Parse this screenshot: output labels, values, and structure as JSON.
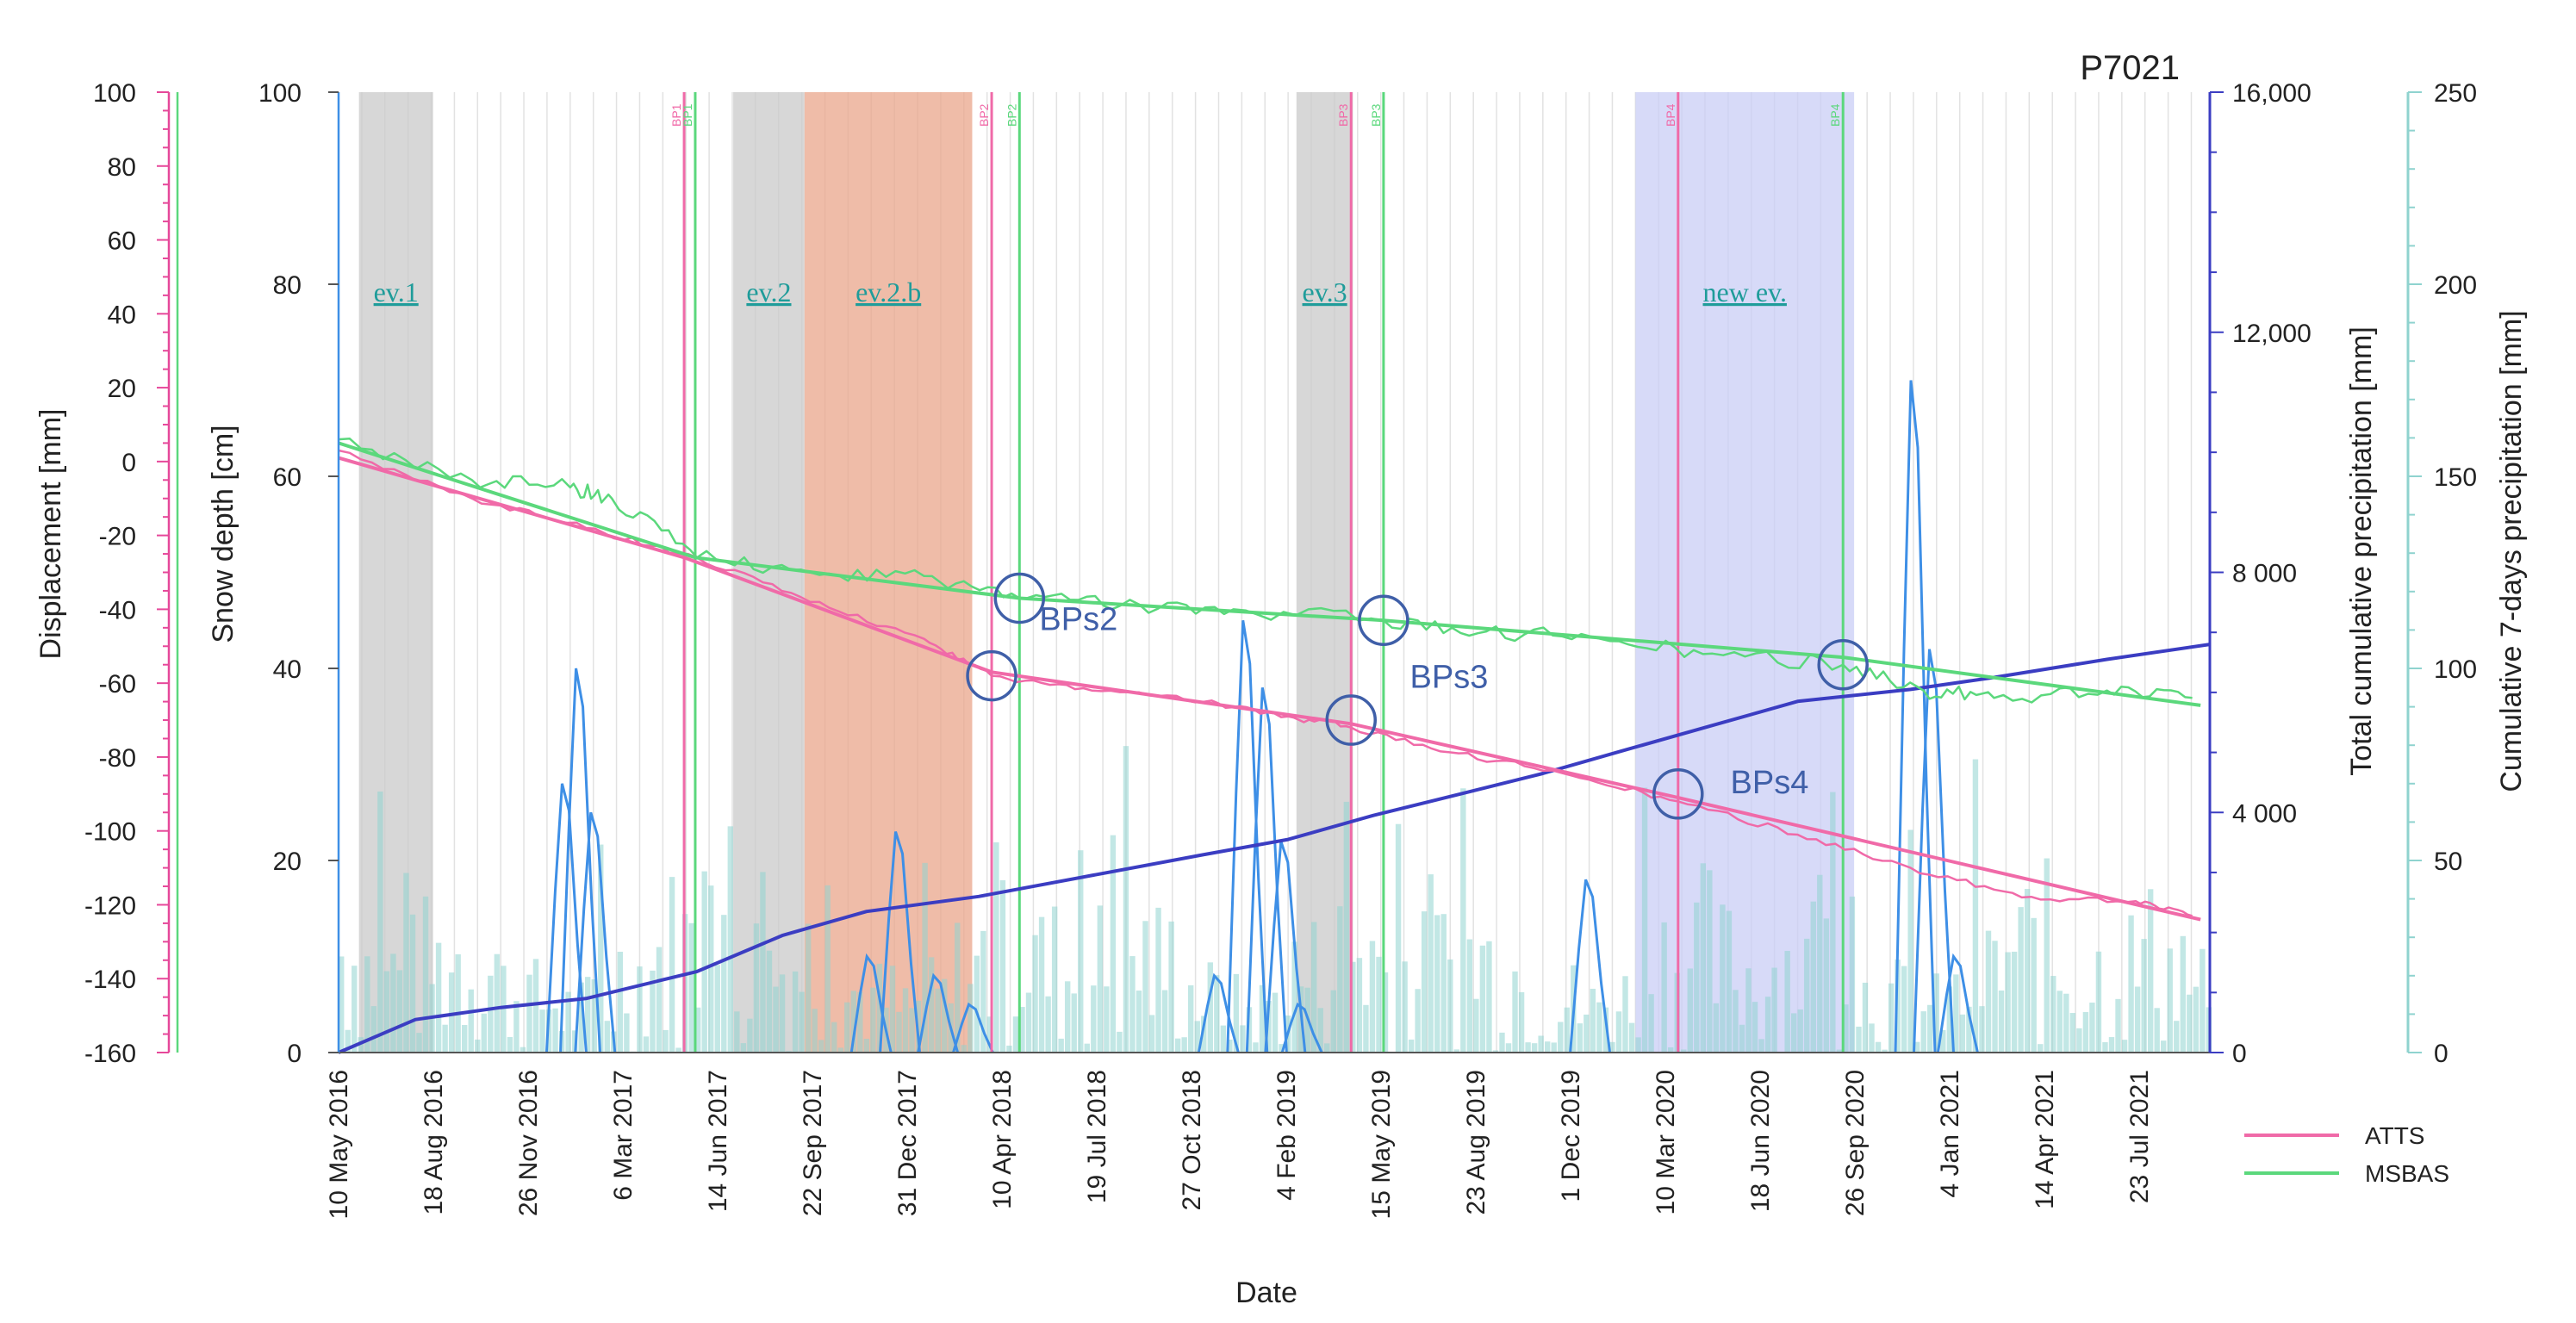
{
  "chart_data": {
    "type": "line",
    "title": "P7021",
    "xlabel": "Date",
    "x_ticks": [
      "10 May 2016",
      "18 Aug 2016",
      "26 Nov 2016",
      "6 Mar 2017",
      "14 Jun 2017",
      "22 Sep 2017",
      "31 Dec 2017",
      "10 Apr 2018",
      "19 Jul 2018",
      "27 Oct 2018",
      "4 Feb 2019",
      "15 May 2019",
      "23 Aug 2019",
      "1 Dec 2019",
      "10 Mar 2020",
      "18 Jun 2020",
      "26 Sep 2020",
      "4 Jan 2021",
      "14 Apr 2021",
      "23 Jul 2021"
    ],
    "x_range": [
      "2016-05-10",
      "2021-11-20"
    ],
    "axes": {
      "displacement": {
        "label": "Displacement [mm]",
        "ylim": [
          -160,
          100
        ],
        "ticks": [
          100,
          80,
          60,
          40,
          20,
          0,
          -20,
          -40,
          -60,
          -80,
          -100,
          -120,
          -140,
          -160
        ],
        "color": "#e6489a"
      },
      "snow": {
        "label": "Snow depth [cm]",
        "ylim": [
          0,
          100
        ],
        "ticks": [
          0,
          20,
          40,
          60,
          80,
          100
        ],
        "color": "#3e8fe6"
      },
      "total_precip": {
        "label": "Total cumulative precipitation [mm]",
        "ylim": [
          0,
          16000
        ],
        "ticks": [
          "0",
          "4 000",
          "8 000",
          "12,000",
          "16,000"
        ],
        "color": "#3b3dc2"
      },
      "cum7_precip": {
        "label": "Cumulative 7-days precipitation [mm]",
        "ylim": [
          0,
          250
        ],
        "ticks": [
          0,
          50,
          100,
          150,
          200,
          250
        ],
        "color": "#8fd3cf"
      }
    },
    "events": [
      {
        "label": "ev.1",
        "start": "2016-06-01",
        "end": "2016-08-20",
        "color": "#c9c9c9"
      },
      {
        "label": "ev.2",
        "start": "2017-07-10",
        "end": "2017-09-25",
        "color": "#c9c9c9"
      },
      {
        "label": "ev.2.b",
        "start": "2017-09-25",
        "end": "2018-03-25",
        "color": "#e9a58b"
      },
      {
        "label": "ev.3",
        "start": "2019-03-10",
        "end": "2019-05-10",
        "color": "#c9c9c9"
      },
      {
        "label": "new ev.",
        "start": "2020-03-10",
        "end": "2020-11-01",
        "color": "#c9cdf6"
      }
    ],
    "breakpoints": [
      {
        "label": "BP1",
        "date": "2017-05-18",
        "series": "ATTS"
      },
      {
        "label": "BP1",
        "date": "2017-05-30",
        "series": "MSBAS"
      },
      {
        "label": "BP2",
        "date": "2018-04-15",
        "series": "ATTS"
      },
      {
        "label": "BP2",
        "date": "2018-05-15",
        "series": "MSBAS"
      },
      {
        "label": "BP3",
        "date": "2019-05-08",
        "series": "ATTS"
      },
      {
        "label": "BP3",
        "date": "2019-06-12",
        "series": "MSBAS"
      },
      {
        "label": "BP4",
        "date": "2020-04-25",
        "series": "ATTS"
      },
      {
        "label": "BP4",
        "date": "2020-10-20",
        "series": "MSBAS"
      }
    ],
    "circle_labels": [
      {
        "label": "BPs2",
        "date": "2018-04-20",
        "snow_level": 44
      },
      {
        "label": "BPs3",
        "date": "2019-05-25",
        "snow_level": 38
      },
      {
        "label": "BPs4",
        "date": "2020-05-05",
        "snow_level": 27
      }
    ],
    "circles": [
      {
        "date": "2018-05-15",
        "value": -37
      },
      {
        "date": "2018-04-15",
        "value": -58
      },
      {
        "date": "2019-06-12",
        "value": -43
      },
      {
        "date": "2019-05-08",
        "value": -70
      },
      {
        "date": "2020-04-25",
        "value": -90
      },
      {
        "date": "2020-10-20",
        "value": -55
      }
    ],
    "series": [
      {
        "name": "ATTS",
        "color": "#f06aa8",
        "x": [
          "2016-05-10",
          "2016-10-01",
          "2017-02-01",
          "2017-06-01",
          "2017-10-01",
          "2018-02-01",
          "2018-04-15",
          "2018-08-01",
          "2018-12-01",
          "2019-03-01",
          "2019-05-08",
          "2019-09-01",
          "2020-01-01",
          "2020-04-25",
          "2020-09-01",
          "2021-01-01",
          "2021-05-01",
          "2021-09-01",
          "2021-11-01"
        ],
        "values": [
          3,
          -10,
          -18,
          -26,
          -38,
          -48,
          -58,
          -62,
          -65,
          -69,
          -72,
          -79,
          -85,
          -92,
          -101,
          -110,
          -118,
          -119,
          -123
        ]
      },
      {
        "name": "MSBAS",
        "color": "#5bd87c",
        "x": [
          "2016-05-10",
          "2016-10-01",
          "2017-01-15",
          "2017-03-01",
          "2017-06-01",
          "2017-10-01",
          "2018-02-01",
          "2018-05-15",
          "2018-09-01",
          "2019-01-01",
          "2019-06-12",
          "2019-10-01",
          "2020-02-01",
          "2020-06-01",
          "2020-10-20",
          "2021-01-15",
          "2021-04-01",
          "2021-08-01",
          "2021-11-01"
        ],
        "values": [
          6,
          -5,
          -7,
          -10,
          -26,
          -30,
          -31,
          -37,
          -39,
          -40,
          -43,
          -46,
          -48,
          -52,
          -55,
          -62,
          -64,
          -62,
          -64
        ]
      },
      {
        "name": "ATTS trend",
        "color": "#f06aa8",
        "x": [
          "2016-05-10",
          "2017-05-18",
          "2018-04-15",
          "2019-05-08",
          "2020-04-25",
          "2021-11-10"
        ],
        "values": [
          1,
          -26,
          -57,
          -71,
          -91,
          -124
        ]
      },
      {
        "name": "MSBAS trend",
        "color": "#5bd87c",
        "x": [
          "2016-05-10",
          "2017-05-30",
          "2018-05-15",
          "2019-06-12",
          "2020-10-20",
          "2021-11-10"
        ],
        "values": [
          5,
          -26,
          -37,
          -43,
          -53,
          -66
        ]
      },
      {
        "name": "Total cumulative precipitation",
        "axis": "total_precip",
        "color": "#3b3dc2",
        "x": [
          "2016-05-10",
          "2016-08-01",
          "2016-11-01",
          "2017-02-01",
          "2017-06-01",
          "2017-09-01",
          "2017-12-01",
          "2018-04-01",
          "2018-08-01",
          "2018-12-01",
          "2019-03-01",
          "2019-06-01",
          "2019-09-01",
          "2019-12-01",
          "2020-03-01",
          "2020-06-01",
          "2020-09-01",
          "2021-01-01",
          "2021-04-01",
          "2021-08-01",
          "2021-11-20"
        ],
        "values": [
          0,
          550,
          750,
          900,
          1350,
          1950,
          2350,
          2600,
          2950,
          3300,
          3550,
          3950,
          4300,
          4650,
          5050,
          5450,
          5850,
          6050,
          6250,
          6550,
          6800
        ]
      },
      {
        "name": "Snow depth",
        "axis": "snow",
        "color": "#3e8fe6",
        "peaks": [
          {
            "date": "2017-01-25",
            "value": 40
          },
          {
            "date": "2017-01-10",
            "value": 28
          },
          {
            "date": "2017-02-10",
            "value": 25
          },
          {
            "date": "2017-12-05",
            "value": 10
          },
          {
            "date": "2018-01-05",
            "value": 23
          },
          {
            "date": "2018-02-15",
            "value": 8
          },
          {
            "date": "2018-03-25",
            "value": 5
          },
          {
            "date": "2018-12-15",
            "value": 8
          },
          {
            "date": "2019-01-15",
            "value": 45
          },
          {
            "date": "2019-02-05",
            "value": 38
          },
          {
            "date": "2019-02-25",
            "value": 22
          },
          {
            "date": "2019-03-15",
            "value": 5
          },
          {
            "date": "2020-01-20",
            "value": 18
          },
          {
            "date": "2021-01-05",
            "value": 70
          },
          {
            "date": "2021-01-25",
            "value": 42
          },
          {
            "date": "2021-02-20",
            "value": 10
          }
        ]
      },
      {
        "name": "Cumulative 7-days precipitation",
        "axis": "cum7_precip",
        "color": "#8fd3cf",
        "type": "bar"
      }
    ],
    "legend": {
      "position": "bottom-right",
      "items": [
        {
          "label": "ATTS",
          "color": "#f06aa8"
        },
        {
          "label": "MSBAS",
          "color": "#5bd87c"
        }
      ]
    },
    "grid": true
  }
}
